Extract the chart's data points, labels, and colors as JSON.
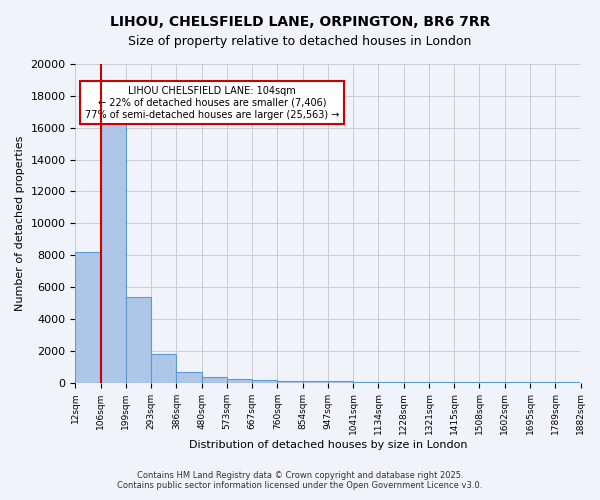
{
  "title_line1": "LIHOU, CHELSFIELD LANE, ORPINGTON, BR6 7RR",
  "title_line2": "Size of property relative to detached houses in London",
  "xlabel": "Distribution of detached houses by size in London",
  "ylabel": "Number of detached properties",
  "bin_labels": [
    "12sqm",
    "106sqm",
    "199sqm",
    "293sqm",
    "386sqm",
    "480sqm",
    "573sqm",
    "667sqm",
    "760sqm",
    "854sqm",
    "947sqm",
    "1041sqm",
    "1134sqm",
    "1228sqm",
    "1321sqm",
    "1415sqm",
    "1508sqm",
    "1602sqm",
    "1695sqm",
    "1789sqm",
    "1882sqm"
  ],
  "bar_heights": [
    8200,
    16800,
    5400,
    1800,
    650,
    320,
    220,
    170,
    130,
    100,
    80,
    60,
    55,
    50,
    45,
    35,
    30,
    25,
    20,
    18
  ],
  "bar_color": "#aec6e8",
  "bar_edge_color": "#5b9bd5",
  "red_line_x": 1,
  "annotation_text": "LIHOU CHELSFIELD LANE: 104sqm\n← 22% of detached houses are smaller (7,406)\n77% of semi-detached houses are larger (25,563) →",
  "annotation_box_color": "#ffffff",
  "annotation_box_edge": "#cc0000",
  "red_line_color": "#cc0000",
  "grid_color": "#cccccc",
  "background_color": "#f0f4fa",
  "ylim": [
    0,
    20000
  ],
  "yticks": [
    0,
    2000,
    4000,
    6000,
    8000,
    10000,
    12000,
    14000,
    16000,
    18000,
    20000
  ],
  "footer_line1": "Contains HM Land Registry data © Crown copyright and database right 2025.",
  "footer_line2": "Contains public sector information licensed under the Open Government Licence v3.0."
}
